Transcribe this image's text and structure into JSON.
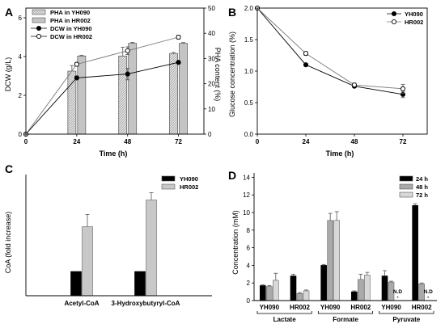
{
  "chart_data": [
    {
      "panel": "A",
      "type": "bar+line",
      "xlabel": "Time (h)",
      "ylabel_left": "DCW (g/L)",
      "ylabel_right": "PHA content (%)",
      "x_ticks": [
        "0",
        "24",
        "48",
        "72"
      ],
      "y_left_ticks": [
        "0",
        "2",
        "4",
        "6"
      ],
      "y_right_ticks": [
        "0",
        "10",
        "20",
        "30",
        "40",
        "50"
      ],
      "xlim": [
        0,
        84
      ],
      "ylim_left": [
        0,
        6.5
      ],
      "ylim_right": [
        0,
        50
      ],
      "bar_series": [
        {
          "name": "PHA in YH090",
          "x": [
            24,
            48,
            72
          ],
          "values": [
            25,
            31,
            32
          ],
          "err": [
            2.2,
            3.5,
            0.4
          ],
          "pattern": "hatched-light"
        },
        {
          "name": "PHA in HR002",
          "x": [
            24,
            48,
            72
          ],
          "values": [
            31,
            36,
            36
          ],
          "err": [
            0.3,
            0.4,
            0.3
          ],
          "pattern": "gray"
        }
      ],
      "line_series": [
        {
          "name": "DCW in YH090",
          "x": [
            0,
            24,
            48,
            72
          ],
          "values": [
            0,
            2.9,
            3.1,
            3.7
          ],
          "err": [
            0,
            0.1,
            0.3,
            0.05
          ],
          "marker": "filled"
        },
        {
          "name": "DCW in HR002",
          "x": [
            0,
            24,
            48,
            72
          ],
          "values": [
            0,
            3.6,
            4.3,
            5.0
          ],
          "err": [
            0,
            0.1,
            0.2,
            0.1
          ],
          "marker": "open"
        }
      ]
    },
    {
      "panel": "B",
      "type": "line",
      "xlabel": "Time (h)",
      "ylabel": "Glucose concentration (%)",
      "x_ticks": [
        "0",
        "24",
        "48",
        "72"
      ],
      "y_ticks": [
        "0.0",
        "0.5",
        "1.0",
        "1.5",
        "2.0"
      ],
      "xlim": [
        0,
        84
      ],
      "ylim": [
        0,
        2.0
      ],
      "series": [
        {
          "name": "YH090",
          "x": [
            0,
            24,
            48,
            72
          ],
          "values": [
            2.0,
            1.1,
            0.76,
            0.63
          ],
          "err": [
            0,
            0.02,
            0.02,
            0.05
          ],
          "marker": "filled"
        },
        {
          "name": "HR002",
          "x": [
            0,
            24,
            48,
            72
          ],
          "values": [
            2.0,
            1.28,
            0.78,
            0.72
          ],
          "err": [
            0,
            0.03,
            0.03,
            0.07
          ],
          "marker": "open"
        }
      ]
    },
    {
      "panel": "C",
      "type": "bar",
      "ylabel": "CoA (fold increase)",
      "categories": [
        "Acetyl-CoA",
        "3-Hydroxybutyryl-CoA"
      ],
      "ylim": [
        0,
        5
      ],
      "series": [
        {
          "name": "YH090",
          "values": [
            1.0,
            1.0
          ],
          "err": [
            0,
            0
          ],
          "color": "#000000"
        },
        {
          "name": "HR002",
          "values": [
            2.85,
            3.95
          ],
          "err": [
            0.5,
            0.3
          ],
          "color": "#c8c8c8"
        }
      ]
    },
    {
      "panel": "D",
      "type": "bar",
      "ylabel": "Concentration (mM)",
      "y_ticks": [
        "0",
        "2",
        "4",
        "6",
        "8",
        "10",
        "12",
        "14"
      ],
      "ylim": [
        0,
        14.5
      ],
      "groups": [
        {
          "label": "YH090",
          "values": [
            1.7,
            1.6,
            2.3
          ],
          "err": [
            0.1,
            0.1,
            0.8
          ],
          "nd": [
            false,
            false,
            false
          ]
        },
        {
          "label": "HR002",
          "values": [
            2.8,
            0.8,
            1.1
          ],
          "err": [
            0.2,
            0.1,
            0.1
          ],
          "nd": [
            false,
            false,
            false
          ]
        },
        {
          "label": "YH090",
          "values": [
            4.0,
            9.1,
            9.1
          ],
          "err": [
            0.1,
            0.8,
            1.0
          ],
          "nd": [
            false,
            false,
            false
          ]
        },
        {
          "label": "HR002",
          "values": [
            1.0,
            2.4,
            2.9
          ],
          "err": [
            0.1,
            0.6,
            0.3
          ],
          "nd": [
            false,
            false,
            false
          ]
        },
        {
          "label": "YH090",
          "values": [
            2.8,
            2.1,
            0
          ],
          "err": [
            0.6,
            0.1,
            0
          ],
          "nd": [
            false,
            false,
            true
          ]
        },
        {
          "label": "HR002",
          "values": [
            10.8,
            1.9,
            0
          ],
          "err": [
            0.2,
            0.1,
            0
          ],
          "nd": [
            false,
            false,
            true
          ]
        }
      ],
      "brackets": [
        "Lactate",
        "Formate",
        "Pyruvate"
      ],
      "nd_label": "N.D",
      "series": [
        {
          "name": "24 h",
          "color": "#000000"
        },
        {
          "name": "48 h",
          "color": "#aaaaaa"
        },
        {
          "name": "72 h",
          "color": "#d8d8d8"
        }
      ]
    }
  ]
}
